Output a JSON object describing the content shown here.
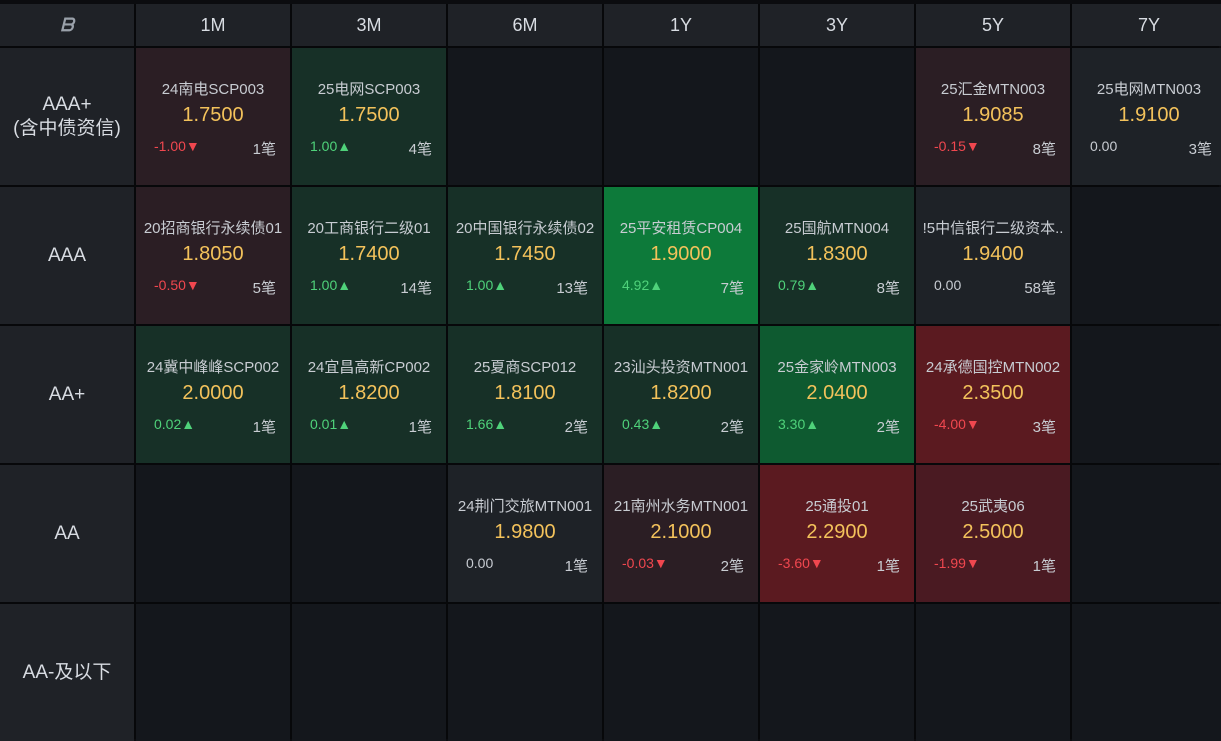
{
  "header": {
    "columns": [
      "1M",
      "3M",
      "6M",
      "1Y",
      "3Y",
      "5Y",
      "7Y"
    ]
  },
  "rows": [
    {
      "label": [
        "AAA+",
        "(含中债资信)"
      ],
      "cells": [
        {
          "name": "24南电SCP003",
          "price": "1.7500",
          "change": "-1.00▼",
          "dir": "down",
          "count": "1笔",
          "tone": "red1"
        },
        {
          "name": "25电网SCP003",
          "price": "1.7500",
          "change": "1.00▲",
          "dir": "up",
          "count": "4笔",
          "tone": "green1"
        },
        null,
        null,
        null,
        {
          "name": "25汇金MTN003",
          "price": "1.9085",
          "change": "-0.15▼",
          "dir": "down",
          "count": "8笔",
          "tone": "red1"
        },
        {
          "name": "25电网MTN003",
          "price": "1.9100",
          "change": "0.00",
          "dir": "flat",
          "count": "3笔",
          "tone": "gray1"
        }
      ]
    },
    {
      "label": [
        "AAA"
      ],
      "cells": [
        {
          "name": "20招商银行永续债01",
          "price": "1.8050",
          "change": "-0.50▼",
          "dir": "down",
          "count": "5笔",
          "tone": "red1"
        },
        {
          "name": "20工商银行二级01",
          "price": "1.7400",
          "change": "1.00▲",
          "dir": "up",
          "count": "14笔",
          "tone": "green1"
        },
        {
          "name": "20中国银行永续债02",
          "price": "1.7450",
          "change": "1.00▲",
          "dir": "up",
          "count": "13笔",
          "tone": "green1"
        },
        {
          "name": "25平安租赁CP004",
          "price": "1.9000",
          "change": "4.92▲",
          "dir": "up",
          "count": "7笔",
          "tone": "green3"
        },
        {
          "name": "25国航MTN004",
          "price": "1.8300",
          "change": "0.79▲",
          "dir": "up",
          "count": "8笔",
          "tone": "green1"
        },
        {
          "name": "!5中信银行二级资本..",
          "price": "1.9400",
          "change": "0.00",
          "dir": "flat",
          "count": "58笔",
          "tone": "gray1"
        },
        null
      ]
    },
    {
      "label": [
        "AA+"
      ],
      "cells": [
        {
          "name": "24冀中峰峰SCP002",
          "price": "2.0000",
          "change": "0.02▲",
          "dir": "up",
          "count": "1笔",
          "tone": "green1"
        },
        {
          "name": "24宜昌高新CP002",
          "price": "1.8200",
          "change": "0.01▲",
          "dir": "up",
          "count": "1笔",
          "tone": "green1"
        },
        {
          "name": "25夏商SCP012",
          "price": "1.8100",
          "change": "1.66▲",
          "dir": "up",
          "count": "2笔",
          "tone": "green1"
        },
        {
          "name": "23汕头投资MTN001",
          "price": "1.8200",
          "change": "0.43▲",
          "dir": "up",
          "count": "2笔",
          "tone": "green1"
        },
        {
          "name": "25金家岭MTN003",
          "price": "2.0400",
          "change": "3.30▲",
          "dir": "up",
          "count": "2笔",
          "tone": "green2"
        },
        {
          "name": "24承德国控MTN002",
          "price": "2.3500",
          "change": "-4.00▼",
          "dir": "down",
          "count": "3笔",
          "tone": "red3"
        },
        null
      ]
    },
    {
      "label": [
        "AA"
      ],
      "cells": [
        null,
        null,
        {
          "name": "24荆门交旅MTN001",
          "price": "1.9800",
          "change": "0.00",
          "dir": "flat",
          "count": "1笔",
          "tone": "gray1"
        },
        {
          "name": "21南州水务MTN001",
          "price": "2.1000",
          "change": "-0.03▼",
          "dir": "down",
          "count": "2笔",
          "tone": "red1"
        },
        {
          "name": "25通投01",
          "price": "2.2900",
          "change": "-3.60▼",
          "dir": "down",
          "count": "1笔",
          "tone": "red3"
        },
        {
          "name": "25武夷06",
          "price": "2.5000",
          "change": "-1.99▼",
          "dir": "down",
          "count": "1笔",
          "tone": "red2"
        },
        null
      ]
    },
    {
      "label": [
        "AA-及以下"
      ],
      "cells": [
        null,
        null,
        null,
        null,
        null,
        null,
        null
      ]
    }
  ],
  "colors": {
    "price": "#f3c25b",
    "up": "#4fd27a",
    "down": "#f0474f",
    "header_bg": "#1f2227"
  },
  "icons": {
    "logo": "brand-logo-icon"
  }
}
